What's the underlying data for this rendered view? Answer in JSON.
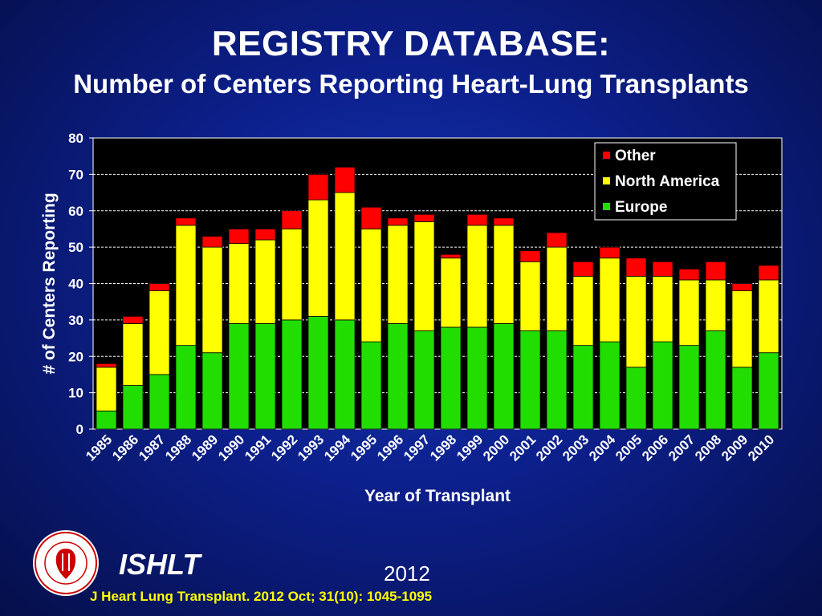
{
  "header": {
    "title": "REGISTRY DATABASE:",
    "subtitle": "Number of Centers Reporting Heart-Lung Transplants"
  },
  "chart_data": {
    "type": "bar",
    "stacked": true,
    "xlabel": "Year of Transplant",
    "ylabel": "# of Centers Reporting",
    "ylim": [
      0,
      80
    ],
    "yticks": [
      0,
      10,
      20,
      30,
      40,
      50,
      60,
      70,
      80
    ],
    "grid": true,
    "legend_position": "top-right",
    "categories": [
      "1985",
      "1986",
      "1987",
      "1988",
      "1989",
      "1990",
      "1991",
      "1992",
      "1993",
      "1994",
      "1995",
      "1996",
      "1997",
      "1998",
      "1999",
      "2000",
      "2001",
      "2002",
      "2003",
      "2004",
      "2005",
      "2006",
      "2007",
      "2008",
      "2009",
      "2010"
    ],
    "series": [
      {
        "name": "Europe",
        "color": "#22dd00",
        "values": [
          5,
          12,
          15,
          23,
          21,
          29,
          29,
          30,
          31,
          30,
          24,
          29,
          27,
          28,
          28,
          29,
          27,
          27,
          23,
          24,
          17,
          24,
          23,
          27,
          17,
          21
        ]
      },
      {
        "name": "North America",
        "color": "#ffff00",
        "values": [
          12,
          17,
          23,
          33,
          29,
          22,
          23,
          25,
          32,
          35,
          31,
          27,
          30,
          19,
          28,
          27,
          19,
          23,
          19,
          23,
          25,
          18,
          18,
          14,
          21,
          20
        ]
      },
      {
        "name": "Other",
        "color": "#ff0000",
        "values": [
          1,
          2,
          2,
          2,
          3,
          4,
          3,
          5,
          7,
          7,
          6,
          2,
          2,
          1,
          3,
          2,
          3,
          4,
          4,
          3,
          5,
          4,
          3,
          5,
          2,
          4
        ]
      }
    ],
    "legend_order": [
      "Other",
      "North America",
      "Europe"
    ]
  },
  "footer": {
    "org": "ISHLT",
    "year": "2012",
    "citation": "J Heart Lung Transplant.  2012 Oct; 31(10): 1045-1095",
    "logo_ring_text": "INTERNATIONAL SOCIETY FOR HEART & LUNG TRANSPLANTATION"
  }
}
